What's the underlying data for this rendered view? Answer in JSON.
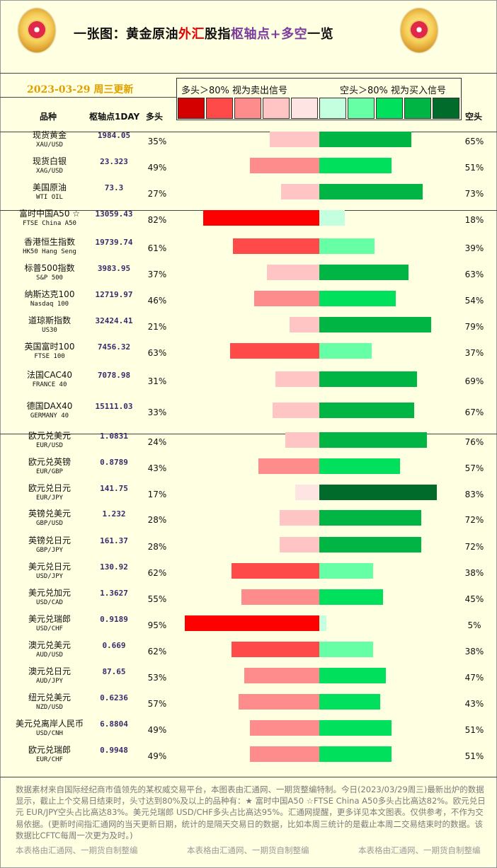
{
  "title": {
    "part1": "一张图：黄金原油",
    "part2": "外汇",
    "part3": "股指",
    "part4": "枢轴点",
    "part5": "+多空",
    "part6": "一览"
  },
  "date": "2023-03-29 周三更新",
  "legend": {
    "left": "多头＞80% 视为卖出信号",
    "right": "空头＞80% 视为买入信号"
  },
  "legend_colors": [
    "#d40000",
    "#ff4a4a",
    "#ff8c8c",
    "#ffc4c4",
    "#ffe4e4",
    "#c4ffe0",
    "#66ffa6",
    "#00e05c",
    "#00b544",
    "#006b2a"
  ],
  "headers": {
    "name": "品种",
    "pivot": "枢轴点1DAY",
    "long": "多头",
    "short": "空头"
  },
  "rows": [
    {
      "name": "现货黄金",
      "code": "XAU/USD",
      "pivot": "1984.05",
      "long": "35%",
      "short": "65%"
    },
    {
      "name": "现货白银",
      "code": "XAG/USD",
      "pivot": "23.323",
      "long": "49%",
      "short": "51%"
    },
    {
      "name": "美国原油",
      "code": "WTI OIL",
      "pivot": "73.3",
      "long": "27%",
      "short": "73%"
    },
    {
      "name": "富时中国A50 ☆",
      "code": "FTSE China A50",
      "pivot": "13059.43",
      "long": "82%",
      "short": "18%"
    },
    {
      "name": "香港恒生指数",
      "code": "HK50 Hang Seng",
      "pivot": "19739.74",
      "long": "61%",
      "short": "39%"
    },
    {
      "name": "标普500指数",
      "code": "S&P 500",
      "pivot": "3983.95",
      "long": "37%",
      "short": "63%"
    },
    {
      "name": "纳斯达克100",
      "code": "Nasdaq 100",
      "pivot": "12719.97",
      "long": "46%",
      "short": "54%"
    },
    {
      "name": "道琼斯指数",
      "code": "US30",
      "pivot": "32424.41",
      "long": "21%",
      "short": "79%"
    },
    {
      "name": "英国富时100",
      "code": "FTSE 100",
      "pivot": "7456.32",
      "long": "63%",
      "short": "37%"
    },
    {
      "name": "法国CAC40",
      "code": "FRANCE 40",
      "pivot": "7078.98",
      "long": "31%",
      "short": "69%"
    },
    {
      "name": "德国DAX40",
      "code": "GERMANY 40",
      "pivot": "15111.03",
      "long": "33%",
      "short": "67%"
    },
    {
      "name": "欧元兑美元",
      "code": "EUR/USD",
      "pivot": "1.0831",
      "long": "24%",
      "short": "76%"
    },
    {
      "name": "欧元兑英镑",
      "code": "EUR/GBP",
      "pivot": "0.8789",
      "long": "43%",
      "short": "57%"
    },
    {
      "name": "欧元兑日元",
      "code": "EUR/JPY",
      "pivot": "141.75",
      "long": "17%",
      "short": "83%"
    },
    {
      "name": "英镑兑美元",
      "code": "GBP/USD",
      "pivot": "1.232",
      "long": "28%",
      "short": "72%"
    },
    {
      "name": "英镑兑日元",
      "code": "GBP/JPY",
      "pivot": "161.37",
      "long": "28%",
      "short": "72%"
    },
    {
      "name": "美元兑日元",
      "code": "USD/JPY",
      "pivot": "130.92",
      "long": "62%",
      "short": "38%"
    },
    {
      "name": "美元兑加元",
      "code": "USD/CAD",
      "pivot": "1.3627",
      "long": "55%",
      "short": "45%"
    },
    {
      "name": "美元兑瑞郎",
      "code": "USD/CHF",
      "pivot": "0.9189",
      "long": "95%",
      "short": "5%"
    },
    {
      "name": "澳元兑美元",
      "code": "AUD/USD",
      "pivot": "0.669",
      "long": "62%",
      "short": "38%"
    },
    {
      "name": "澳元兑日元",
      "code": "AUD/JPY",
      "pivot": "87.65",
      "long": "53%",
      "short": "47%"
    },
    {
      "name": "纽元兑美元",
      "code": "NZD/USD",
      "pivot": "0.6236",
      "long": "57%",
      "short": "43%"
    },
    {
      "name": "美元兑离岸人民币",
      "code": "USD/CNH",
      "pivot": "6.8804",
      "long": "49%",
      "short": "51%"
    },
    {
      "name": "欧元兑瑞郎",
      "code": "EUR/CHF",
      "pivot": "0.9948",
      "long": "49%",
      "short": "51%"
    }
  ],
  "chart_data": {
    "type": "bar",
    "categories": [
      "现货黄金",
      "现货白银",
      "美国原油",
      "富时中国A50 ☆",
      "香港恒生指数",
      "标普500指数",
      "纳斯达克100",
      "道琼斯指数",
      "英国富时100",
      "法国CAC40",
      "德国DAX40",
      "欧元兑美元",
      "欧元兑英镑",
      "欧元兑日元",
      "英镑兑美元",
      "英镑兑日元",
      "美元兑日元",
      "美元兑加元",
      "美元兑瑞郎",
      "澳元兑美元",
      "澳元兑日元",
      "纽元兑美元",
      "美元兑离岸人民币",
      "欧元兑瑞郎"
    ],
    "series": [
      {
        "name": "多头",
        "values": [
          35,
          49,
          27,
          82,
          61,
          37,
          46,
          21,
          63,
          31,
          33,
          24,
          43,
          17,
          28,
          28,
          62,
          55,
          95,
          62,
          53,
          57,
          49,
          49
        ]
      },
      {
        "name": "空头",
        "values": [
          65,
          51,
          73,
          18,
          39,
          63,
          54,
          79,
          37,
          69,
          67,
          76,
          57,
          83,
          72,
          72,
          38,
          45,
          5,
          38,
          47,
          43,
          51,
          51
        ]
      }
    ],
    "ylim": [
      0,
      100
    ]
  },
  "footer": "数据素材来自国际经纪商市值领先的某权威交易平台，本图表由汇通网、一期货整编特制。今日(2023/03/29周三)最新出炉的数据显示，截止上个交易日结束时，头寸达到80%及以上的品种有：★ 富时中国A50 ☆FTSE China A50多头占比高达82%。欧元兑日元 EUR/JPY空头占比高达83%。美元兑瑞郎 USD/CHF多头占比高达95%。汇通网提醒，更多详见本文图表。仅供参考，不作为交易依据。(更新时间指汇通网的当天更新日期，统计的是隔天交易日的数据，比如本周三统计的是截止本周二交易结束时的数据。该数据比CFTC每周一次更为及时。)",
  "credits": [
    "本表格由汇通网、一期货自制整编",
    "本表格由汇通网、一期货自制整编",
    "本表格由汇通网、一期货自制整编"
  ]
}
